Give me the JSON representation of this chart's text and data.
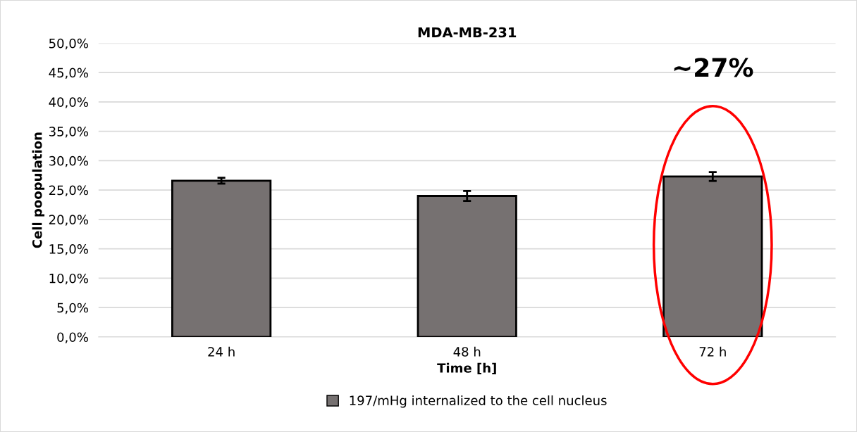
{
  "chart_data": {
    "type": "bar",
    "title": "MDA-MB-231",
    "xlabel": "Time [h]",
    "ylabel": "Cell poopulation",
    "categories": [
      "24 h",
      "48 h",
      "72 h"
    ],
    "series": [
      {
        "name": "197/mHg internalized to the cell nucleus",
        "color": "#767171",
        "values": [
          26.6,
          24.0,
          27.3
        ],
        "errors": [
          0.5,
          0.85,
          0.75
        ]
      }
    ],
    "ylim": [
      0,
      50
    ],
    "yticks": [
      {
        "value": 0,
        "label": "0,0%"
      },
      {
        "value": 5,
        "label": "5,0%"
      },
      {
        "value": 10,
        "label": "10,0%"
      },
      {
        "value": 15,
        "label": "15,0%"
      },
      {
        "value": 20,
        "label": "20,0%"
      },
      {
        "value": 25,
        "label": "25,0%"
      },
      {
        "value": 30,
        "label": "30,0%"
      },
      {
        "value": 35,
        "label": "35,0%"
      },
      {
        "value": 40,
        "label": "40,0%"
      },
      {
        "value": 45,
        "label": "45,0%"
      },
      {
        "value": 50,
        "label": "50,0%"
      }
    ],
    "annotations": [
      "~27%"
    ],
    "grid": "y",
    "legend": "bottom"
  }
}
